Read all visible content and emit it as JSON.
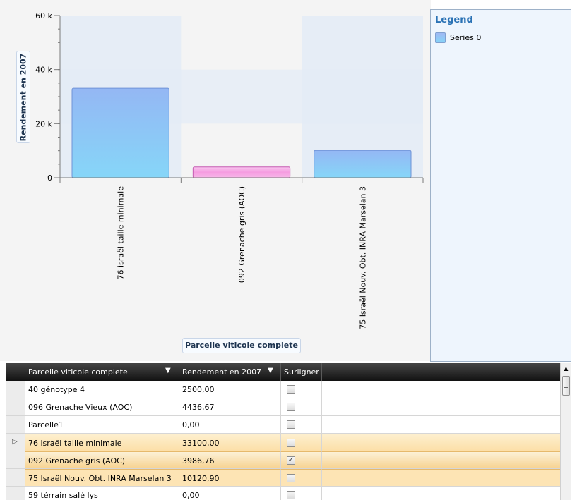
{
  "chart_data": {
    "type": "bar",
    "categories": [
      "76 israël taille minimale",
      "092 Grenache gris (AOC)",
      "75 Israël Nouv. Obt. INRA Marselan 3"
    ],
    "series": [
      {
        "name": "Series 0",
        "values": [
          33100,
          3986.76,
          10120.9
        ]
      }
    ],
    "highlighted": [
      false,
      true,
      false
    ],
    "xlabel": "Parcelle viticole complete",
    "ylabel": "Rendement en 2007",
    "ylim": [
      0,
      60000
    ],
    "yticks": [
      0,
      20000,
      40000,
      60000
    ],
    "ytick_labels": [
      "0",
      "20 k",
      "40 k",
      "60 k"
    ],
    "grid": true,
    "legend_position": "right",
    "colors": {
      "bar": "#94b7f4",
      "bar_bottom": "#86d6f8",
      "highlight": "#f59ce0",
      "band": "#e3ebf6"
    }
  },
  "legend": {
    "title": "Legend",
    "items": [
      {
        "label": "Series 0"
      }
    ]
  },
  "grid": {
    "columns": [
      {
        "label": "Parcelle viticole complete",
        "filter_icon": "filter-icon"
      },
      {
        "label": "Rendement en 2007",
        "filter_icon": "filter-icon"
      },
      {
        "label": "Surligner"
      }
    ],
    "rows": [
      {
        "parcelle": "40 génotype 4",
        "rendement": "2500,00",
        "surligner": false,
        "highlight": false,
        "current": false
      },
      {
        "parcelle": "096 Grenache Vieux (AOC)",
        "rendement": "4436,67",
        "surligner": false,
        "highlight": false,
        "current": false
      },
      {
        "parcelle": "Parcelle1",
        "rendement": "0,00",
        "surligner": false,
        "highlight": false,
        "current": false
      },
      {
        "parcelle": "76 israël taille minimale",
        "rendement": "33100,00",
        "surligner": false,
        "highlight": true,
        "current": true
      },
      {
        "parcelle": "092 Grenache gris (AOC)",
        "rendement": "3986,76",
        "surligner": true,
        "highlight": true,
        "current": false
      },
      {
        "parcelle": "75 Israël Nouv. Obt. INRA Marselan 3",
        "rendement": "10120,90",
        "surligner": false,
        "highlight": true,
        "current": false
      },
      {
        "parcelle": "59 térrain salé lys",
        "rendement": "0,00",
        "surligner": false,
        "highlight": false,
        "current": false
      }
    ]
  }
}
